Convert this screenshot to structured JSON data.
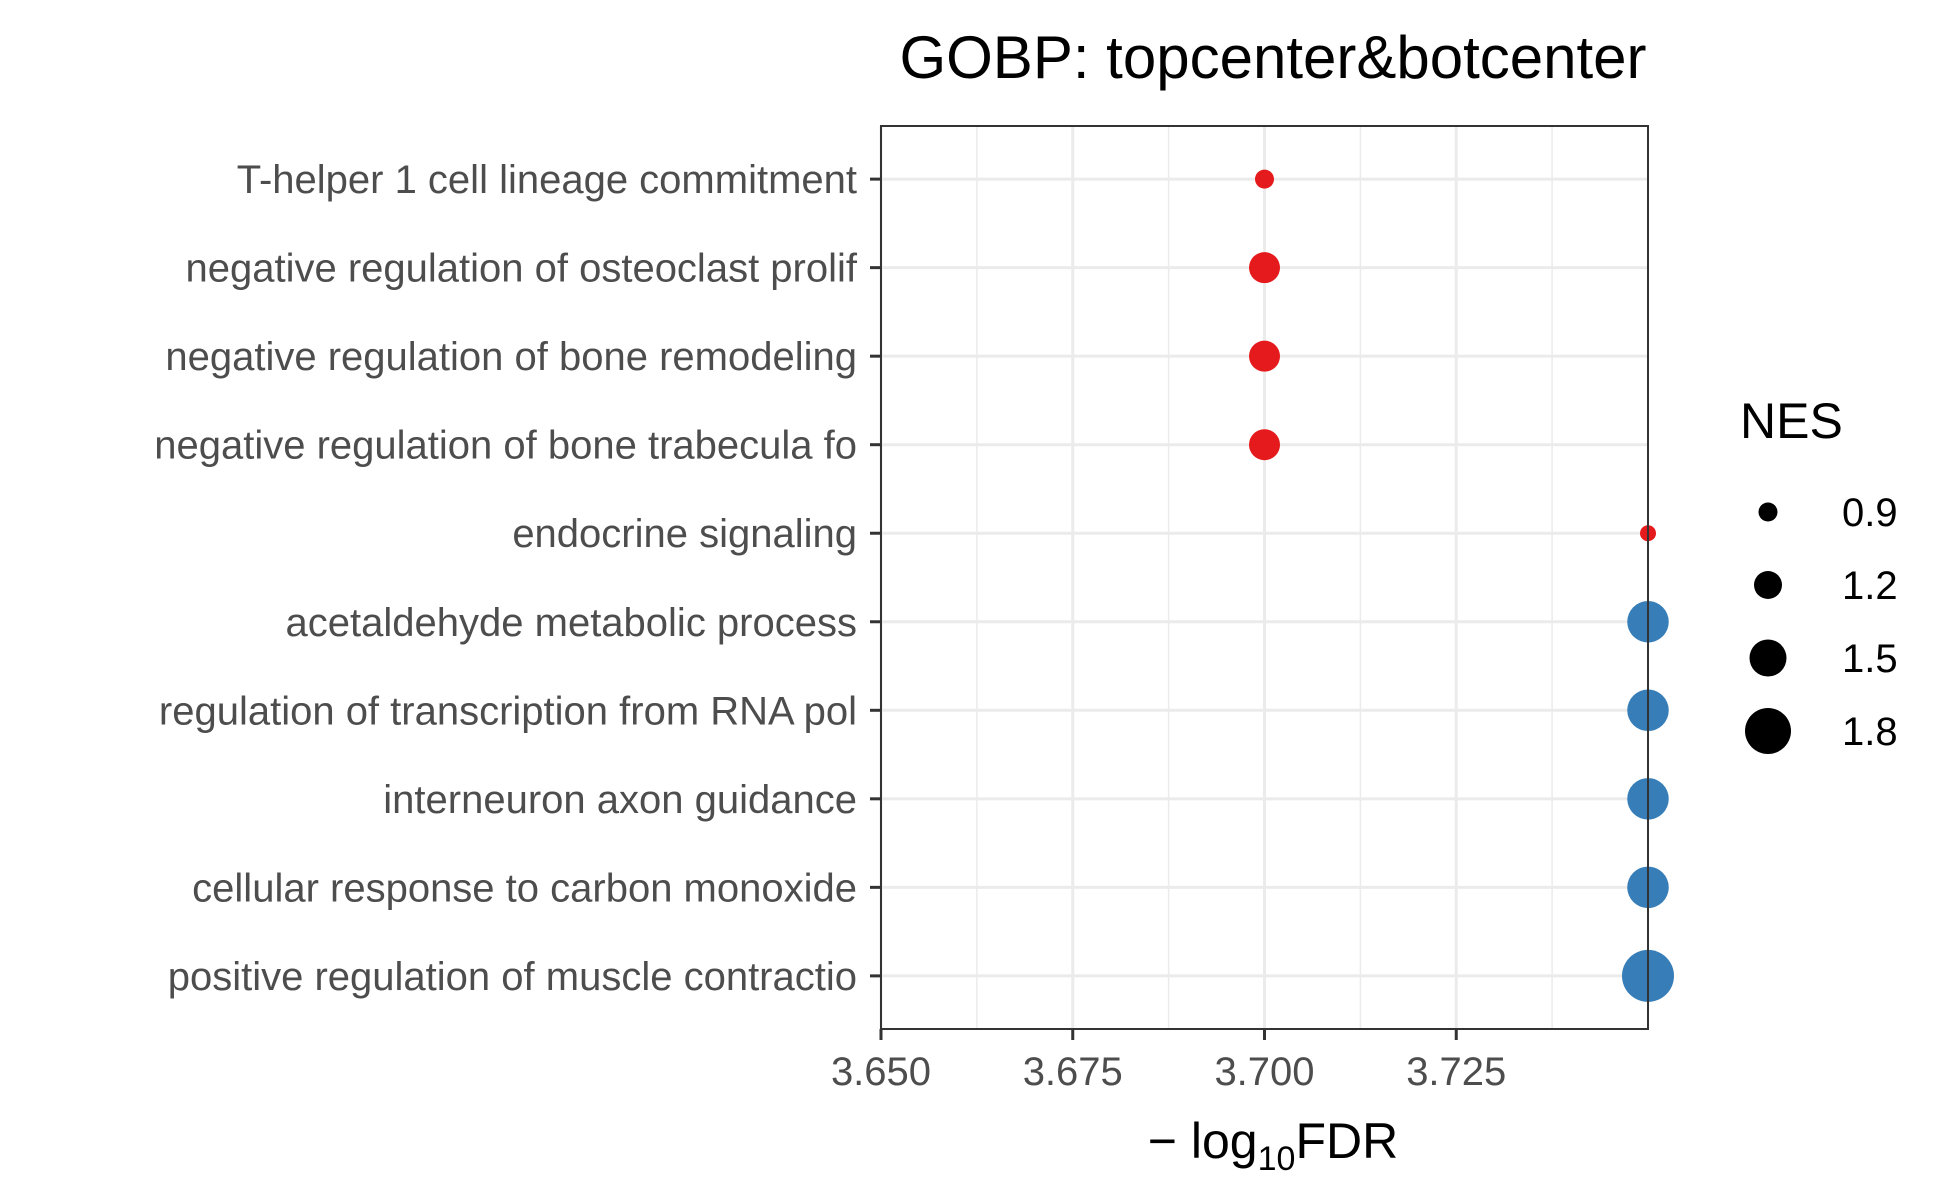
{
  "chart_data": {
    "type": "scatter",
    "title": "GOBP: topcenter&botcenter",
    "xlabel": {
      "prefix": "− log",
      "subscript": "10",
      "suffix": "FDR"
    },
    "ylabel": "",
    "xlim": [
      3.65,
      3.75
    ],
    "x_ticks": [
      3.65,
      3.675,
      3.7,
      3.725
    ],
    "x_tick_labels": [
      "3.650",
      "3.675",
      "3.700",
      "3.725"
    ],
    "grid": true,
    "categories": [
      "T-helper 1 cell lineage commitment",
      "negative regulation of osteoclast prolif",
      "negative regulation of bone remodeling",
      "negative regulation of bone trabecula fo",
      "endocrine signaling",
      "acetaldehyde metabolic process",
      "regulation of transcription from RNA pol",
      "interneuron axon guidance",
      "cellular response to carbon monoxide",
      "positive regulation of muscle contractio"
    ],
    "points": [
      {
        "category": "T-helper 1 cell lineage commitment",
        "x": 3.7,
        "nes": 0.9,
        "color": "#e41a1c"
      },
      {
        "category": "negative regulation of osteoclast prolif",
        "x": 3.7,
        "nes": 1.3,
        "color": "#e41a1c"
      },
      {
        "category": "negative regulation of bone remodeling",
        "x": 3.7,
        "nes": 1.3,
        "color": "#e41a1c"
      },
      {
        "category": "negative regulation of bone trabecula fo",
        "x": 3.7,
        "nes": 1.3,
        "color": "#e41a1c"
      },
      {
        "category": "endocrine signaling",
        "x": 3.75,
        "nes": 0.8,
        "color": "#e41a1c"
      },
      {
        "category": "acetaldehyde metabolic process",
        "x": 3.75,
        "nes": 1.65,
        "color": "#377eb8"
      },
      {
        "category": "regulation of transcription from RNA pol",
        "x": 3.75,
        "nes": 1.65,
        "color": "#377eb8"
      },
      {
        "category": "interneuron axon guidance",
        "x": 3.75,
        "nes": 1.65,
        "color": "#377eb8"
      },
      {
        "category": "cellular response to carbon monoxide",
        "x": 3.75,
        "nes": 1.65,
        "color": "#377eb8"
      },
      {
        "category": "positive regulation of muscle contractio",
        "x": 3.75,
        "nes": 2.0,
        "color": "#377eb8"
      }
    ],
    "legend": {
      "title": "NES",
      "position": "right",
      "values": [
        0.9,
        1.2,
        1.5,
        1.8
      ],
      "labels": [
        "0.9",
        "1.2",
        "1.5",
        "1.8"
      ]
    },
    "size_range_nes": [
      0.8,
      2.0
    ]
  }
}
